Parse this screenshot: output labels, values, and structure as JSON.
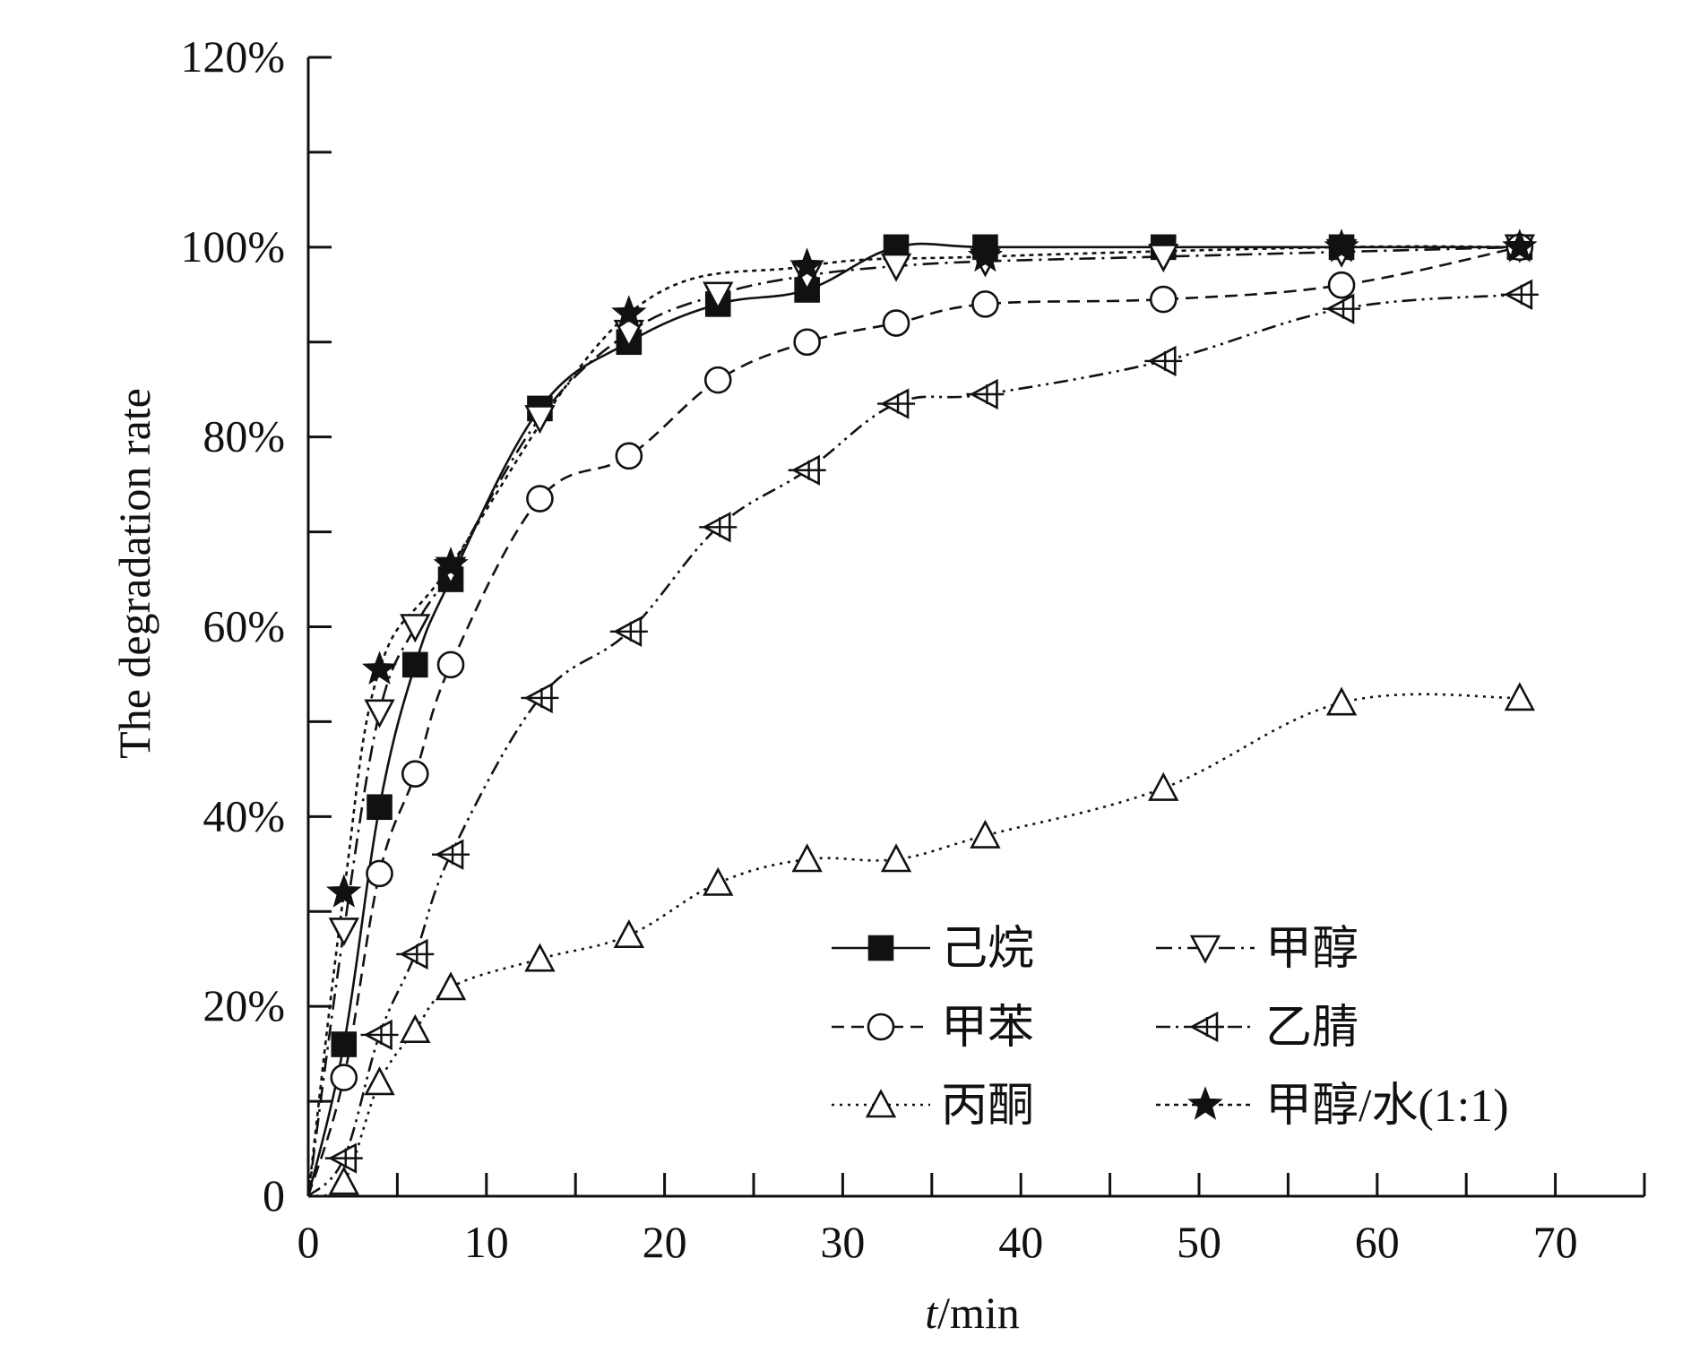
{
  "chart_data": {
    "type": "line",
    "title": "",
    "xlabel_italic": "t",
    "xlabel_rest": "/min",
    "ylabel": "The degradation rate",
    "xlim": [
      0,
      75
    ],
    "ylim": [
      0,
      1.2
    ],
    "xticks": [
      0,
      10,
      20,
      30,
      40,
      50,
      60,
      70
    ],
    "xtick_labels": [
      "0",
      "10",
      "20",
      "30",
      "40",
      "50",
      "60",
      "70"
    ],
    "yticks": [
      0,
      0.2,
      0.4,
      0.6,
      0.8,
      1.0,
      1.2
    ],
    "ytick_labels": [
      "0",
      "20%",
      "40%",
      "60%",
      "80%",
      "100%",
      "120%"
    ],
    "grid": false,
    "legend_position": "bottom-right",
    "series": [
      {
        "name": "己烷",
        "marker": "filled-square",
        "dash": "solid",
        "x": [
          0,
          2,
          4,
          6,
          8,
          13,
          18,
          23,
          28,
          33,
          38,
          48,
          58,
          68
        ],
        "y": [
          0,
          0.16,
          0.41,
          0.56,
          0.65,
          0.83,
          0.9,
          0.94,
          0.955,
          1.0,
          1.0,
          1.0,
          1.0,
          1.0
        ]
      },
      {
        "name": "甲醇",
        "marker": "open-triangle-down",
        "dash": "dashdot",
        "x": [
          0,
          2,
          4,
          6,
          8,
          13,
          18,
          23,
          28,
          33,
          38,
          48,
          58,
          68
        ],
        "y": [
          0,
          0.28,
          0.51,
          0.6,
          0.66,
          0.82,
          0.91,
          0.95,
          0.97,
          0.98,
          0.985,
          0.99,
          0.995,
          1.0
        ]
      },
      {
        "name": "甲苯",
        "marker": "open-circle",
        "dash": "dashed",
        "x": [
          0,
          2,
          4,
          6,
          8,
          13,
          18,
          23,
          28,
          33,
          38,
          48,
          58,
          68
        ],
        "y": [
          0,
          0.125,
          0.34,
          0.445,
          0.56,
          0.735,
          0.78,
          0.86,
          0.9,
          0.92,
          0.94,
          0.945,
          0.96,
          1.0
        ]
      },
      {
        "name": "乙腈",
        "marker": "open-triangle-left-cross",
        "dash": "dashdotdot",
        "x": [
          0,
          2,
          4,
          6,
          8,
          13,
          18,
          23,
          28,
          33,
          38,
          48,
          58,
          68
        ],
        "y": [
          0,
          0.04,
          0.17,
          0.255,
          0.36,
          0.525,
          0.595,
          0.705,
          0.765,
          0.835,
          0.845,
          0.88,
          0.935,
          0.95
        ]
      },
      {
        "name": "丙酮",
        "marker": "open-triangle-up",
        "dash": "dotted",
        "x": [
          0,
          2,
          4,
          6,
          8,
          13,
          18,
          23,
          28,
          33,
          38,
          48,
          58,
          68
        ],
        "y": [
          0,
          0.015,
          0.12,
          0.175,
          0.22,
          0.25,
          0.275,
          0.33,
          0.355,
          0.355,
          0.38,
          0.43,
          0.52,
          0.525
        ]
      },
      {
        "name": "甲醇/水(1:1)",
        "marker": "filled-star",
        "dash": "densedot",
        "x": [
          0,
          2,
          4,
          8,
          18,
          28,
          38,
          58,
          68
        ],
        "y": [
          0,
          0.32,
          0.555,
          0.665,
          0.93,
          0.98,
          0.99,
          1.0,
          1.0
        ]
      }
    ]
  }
}
